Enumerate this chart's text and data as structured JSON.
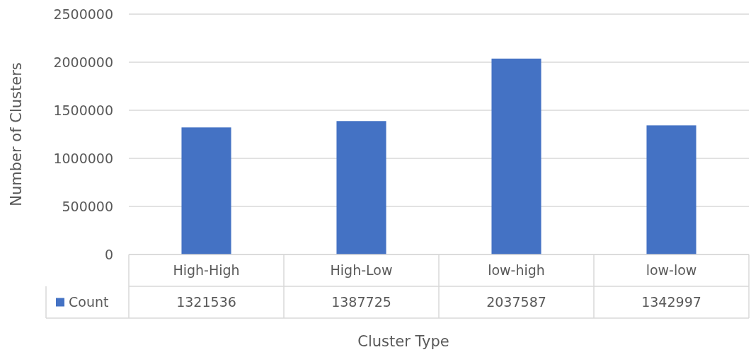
{
  "chart_data": {
    "type": "bar",
    "xlabel": "Cluster Type",
    "ylabel": "Number of Clusters",
    "categories": [
      "High-High",
      "High-Low",
      "low-high",
      "low-low"
    ],
    "series": [
      {
        "name": "Count",
        "color": "#4472c4",
        "values": [
          1321536,
          1387725,
          2037587,
          1342997
        ]
      }
    ],
    "ylim": [
      0,
      2500000
    ],
    "yticks": [
      0,
      500000,
      1000000,
      1500000,
      2000000,
      2500000
    ],
    "grid": "y",
    "legend": "bottom",
    "data_labels": true
  }
}
